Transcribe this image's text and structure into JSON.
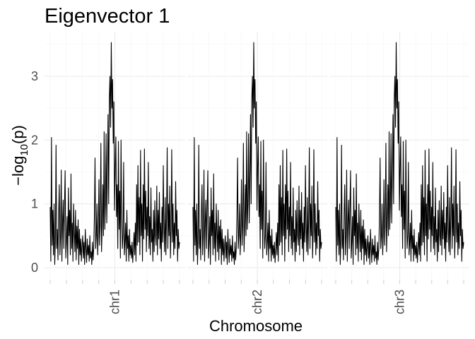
{
  "chart_data": {
    "type": "line",
    "title": "Eigenvector 1",
    "xlabel": "Chromosome",
    "ylabel": "−log10(p)",
    "ylabel_parts": {
      "prefix": "−log",
      "sub": "10",
      "suffix": "(p)"
    },
    "ylim": [
      0,
      3.55
    ],
    "yticks": [
      0,
      1,
      2,
      3
    ],
    "grid": true,
    "facets": [
      "chr1",
      "chr2",
      "chr3"
    ],
    "series": [
      {
        "values": [
          0.95,
          0.1,
          2.04,
          0.35,
          0.9,
          0.2,
          1.0,
          0.05,
          0.45,
          1.92,
          0.3,
          0.6,
          0.12,
          0.85,
          1.3,
          0.2,
          0.5,
          1.53,
          0.1,
          0.7,
          1.06,
          0.3,
          0.95,
          1.52,
          0.15,
          0.4,
          0.8,
          0.05,
          1.25,
          0.5,
          0.9,
          0.2,
          1.47,
          0.3,
          0.7,
          0.1,
          1.0,
          0.55,
          0.25,
          0.9,
          0.12,
          0.65,
          0.3,
          0.75,
          0.05,
          0.6,
          0.2,
          0.45,
          0.1,
          0.35,
          0.5,
          0.15,
          0.4,
          0.05,
          0.6,
          0.3,
          0.08,
          0.45,
          0.2,
          0.35,
          0.1,
          0.5,
          0.15,
          0.25,
          0.05,
          0.4,
          0.12,
          0.3,
          0.8,
          1.72,
          0.3,
          0.5,
          1.0,
          0.2,
          0.55,
          1.38,
          0.35,
          0.7,
          1.95,
          0.25,
          0.65,
          1.3,
          0.5,
          2.13,
          0.6,
          1.0,
          2.1,
          0.7,
          1.4,
          2.4,
          1.0,
          2.65,
          3.0,
          2.2,
          3.53,
          2.5,
          2.95,
          1.95,
          2.6,
          0.9,
          1.55,
          2.05,
          0.8,
          1.3,
          0.3,
          1.98,
          0.6,
          1.2,
          0.15,
          2.0,
          0.8,
          0.3,
          0.5,
          1.65,
          0.2,
          0.4,
          0.7,
          0.1,
          0.9,
          0.3,
          0.5,
          0.1,
          0.6,
          0.2,
          0.35,
          0.15,
          0.4,
          0.08,
          0.3,
          0.55,
          0.2,
          0.7,
          0.1,
          1.3,
          0.35,
          1.6,
          0.4,
          1.1,
          0.2,
          1.84,
          0.5,
          1.0,
          0.1,
          1.3,
          0.45,
          1.86,
          0.6,
          1.2,
          0.25,
          0.95,
          0.5,
          1.65,
          0.3,
          0.8,
          0.2,
          1.25,
          0.4,
          0.6,
          0.1,
          0.9,
          0.25,
          1.05,
          0.5,
          0.35,
          1.28,
          0.2,
          0.9,
          0.45,
          1.18,
          0.3,
          0.7,
          0.1,
          0.95,
          0.4,
          1.6,
          0.6,
          0.25,
          1.1,
          0.2,
          0.8,
          1.88,
          0.3,
          1.0,
          0.5,
          1.28,
          0.15,
          0.6,
          1.85,
          0.4,
          1.0,
          0.2,
          0.7,
          0.3,
          1.35,
          0.5,
          0.9,
          0.1,
          0.6,
          0.3,
          0.4
        ]
      }
    ]
  }
}
